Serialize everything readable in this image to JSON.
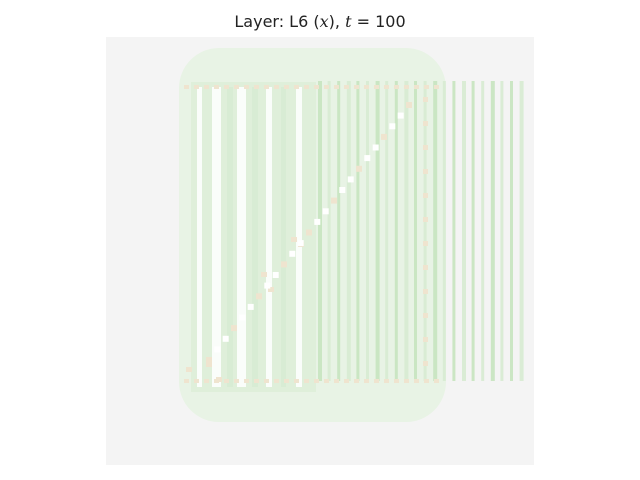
{
  "figure": {
    "title_prefix": "Layer: L6 (",
    "title_var": "x",
    "title_mid": "), ",
    "title_t": "t",
    "title_eq": " = 100"
  },
  "colors": {
    "background": "#f4f4f4",
    "pale_green": "#e8f3e5",
    "mid_green": "#d7ebd2",
    "strong_green": "#c7e4bf",
    "beige": "#efe4cf",
    "white": "#ffffff"
  }
}
